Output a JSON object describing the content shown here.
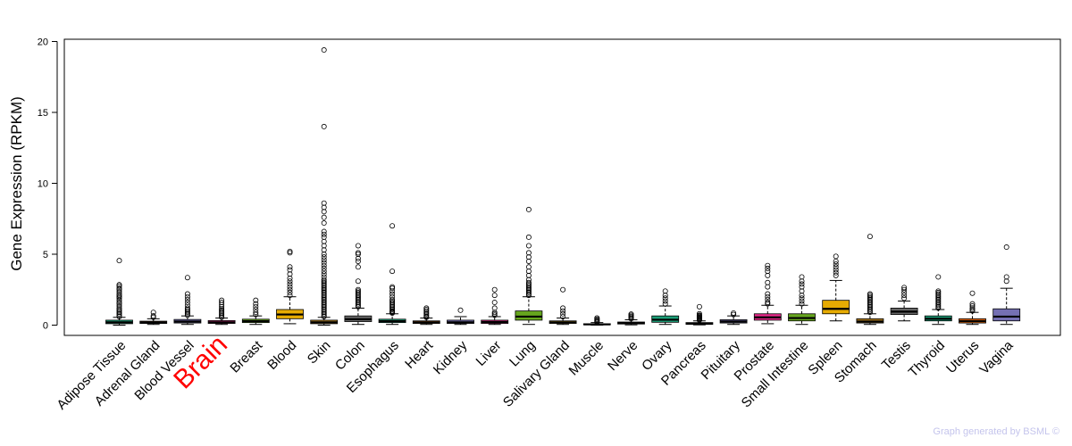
{
  "chart_data": {
    "type": "box",
    "title": "",
    "xlabel": "",
    "ylabel": "Gene Expression (RPKM)",
    "ylim": [
      0,
      20
    ],
    "yticks": [
      0,
      5,
      10,
      15,
      20
    ],
    "highlight_category": "Brain",
    "highlight_color": "#ff0000",
    "credit": "Graph generated by BSML ©",
    "credit_color": "#c4c4ec",
    "categories": [
      "Adipose Tissue",
      "Adrenal Gland",
      "Blood Vessel",
      "Brain",
      "Breast",
      "Blood",
      "Skin",
      "Colon",
      "Esophagus",
      "Heart",
      "Kidney",
      "Liver",
      "Lung",
      "Salivary Gland",
      "Muscle",
      "Nerve",
      "Ovary",
      "Pancreas",
      "Pituitary",
      "Prostate",
      "Small Intestine",
      "Spleen",
      "Stomach",
      "Testis",
      "Thyroid",
      "Uterus",
      "Vagina"
    ],
    "boxes": [
      {
        "color": "#1b9e77",
        "min": 0.0,
        "q1": 0.1,
        "median": 0.2,
        "q3": 0.35,
        "max": 0.55,
        "outliers": [
          0.6,
          0.7,
          0.8,
          0.9,
          1.0,
          1.1,
          1.2,
          1.35,
          1.5,
          1.6,
          1.75,
          1.9,
          2.0,
          2.1,
          2.2,
          2.35,
          2.5,
          2.6,
          2.75,
          2.85,
          4.55
        ]
      },
      {
        "color": "#d95f02",
        "min": 0.05,
        "q1": 0.12,
        "median": 0.18,
        "q3": 0.28,
        "max": 0.45,
        "outliers": [
          0.55,
          0.65,
          0.9
        ]
      },
      {
        "color": "#7570b3",
        "min": 0.05,
        "q1": 0.15,
        "median": 0.25,
        "q3": 0.4,
        "max": 0.65,
        "outliers": [
          0.7,
          0.8,
          0.9,
          1.0,
          1.1,
          1.2,
          1.4,
          1.6,
          1.8,
          2.0,
          2.2,
          3.35
        ]
      },
      {
        "color": "#e7298a",
        "min": 0.05,
        "q1": 0.12,
        "median": 0.2,
        "q3": 0.32,
        "max": 0.5,
        "outliers": [
          0.55,
          0.65,
          0.75,
          0.85,
          0.95,
          1.05,
          1.15,
          1.3,
          1.45,
          1.6,
          1.75
        ]
      },
      {
        "color": "#66a61e",
        "min": 0.05,
        "q1": 0.18,
        "median": 0.28,
        "q3": 0.42,
        "max": 0.65,
        "outliers": [
          0.75,
          0.9,
          1.1,
          1.3,
          1.5,
          1.75
        ]
      },
      {
        "color": "#e6ab02",
        "min": 0.1,
        "q1": 0.45,
        "median": 0.75,
        "q3": 1.1,
        "max": 2.0,
        "outliers": [
          2.1,
          2.3,
          2.5,
          2.7,
          2.9,
          3.1,
          3.3,
          3.6,
          3.9,
          4.1,
          5.1,
          5.2
        ]
      },
      {
        "color": "#a6761d",
        "min": 0.0,
        "q1": 0.1,
        "median": 0.2,
        "q3": 0.35,
        "max": 0.55,
        "outliers": [
          0.6,
          0.7,
          0.8,
          0.9,
          1.0,
          1.1,
          1.2,
          1.3,
          1.4,
          1.5,
          1.6,
          1.7,
          1.8,
          1.9,
          2.0,
          2.1,
          2.2,
          2.3,
          2.4,
          2.5,
          2.6,
          2.7,
          2.8,
          2.9,
          3.0,
          3.1,
          3.2,
          3.4,
          3.6,
          3.8,
          4.0,
          4.2,
          4.4,
          4.6,
          4.8,
          5.0,
          5.3,
          5.6,
          5.9,
          6.2,
          6.4,
          6.6,
          7.2,
          7.6,
          8.0,
          8.3,
          8.6,
          14.0,
          19.4
        ]
      },
      {
        "color": "#666666",
        "min": 0.05,
        "q1": 0.25,
        "median": 0.42,
        "q3": 0.65,
        "max": 1.2,
        "outliers": [
          1.3,
          1.4,
          1.5,
          1.6,
          1.7,
          1.8,
          1.9,
          2.0,
          2.1,
          2.2,
          2.3,
          2.4,
          2.5,
          3.1,
          4.1,
          4.5,
          4.7,
          5.0,
          5.1,
          5.6
        ]
      },
      {
        "color": "#1b9e77",
        "min": 0.05,
        "q1": 0.18,
        "median": 0.28,
        "q3": 0.42,
        "max": 0.8,
        "outliers": [
          0.85,
          0.9,
          0.95,
          1.0,
          1.1,
          1.2,
          1.3,
          1.4,
          1.5,
          1.6,
          1.7,
          1.8,
          2.0,
          2.2,
          2.4,
          2.6,
          2.7,
          3.8,
          7.0
        ]
      },
      {
        "color": "#d95f02",
        "min": 0.05,
        "q1": 0.12,
        "median": 0.2,
        "q3": 0.3,
        "max": 0.5,
        "outliers": [
          0.55,
          0.6,
          0.7,
          0.8,
          0.9,
          1.0,
          1.1,
          1.2
        ]
      },
      {
        "color": "#7570b3",
        "min": 0.05,
        "q1": 0.12,
        "median": 0.2,
        "q3": 0.35,
        "max": 0.6,
        "outliers": [
          1.05
        ]
      },
      {
        "color": "#e7298a",
        "min": 0.05,
        "q1": 0.12,
        "median": 0.22,
        "q3": 0.35,
        "max": 0.6,
        "outliers": [
          0.7,
          0.8,
          0.9,
          1.2,
          1.6,
          2.1,
          2.5
        ]
      },
      {
        "color": "#66a61e",
        "min": 0.05,
        "q1": 0.35,
        "median": 0.6,
        "q3": 1.0,
        "max": 2.0,
        "outliers": [
          2.1,
          2.2,
          2.3,
          2.4,
          2.5,
          2.6,
          2.7,
          2.8,
          2.9,
          3.0,
          3.2,
          3.5,
          3.8,
          4.1,
          4.5,
          4.8,
          5.1,
          5.6,
          6.2,
          8.15
        ]
      },
      {
        "color": "#e6ab02",
        "min": 0.05,
        "q1": 0.12,
        "median": 0.2,
        "q3": 0.3,
        "max": 0.5,
        "outliers": [
          0.6,
          0.8,
          1.0,
          1.2,
          2.5
        ]
      },
      {
        "color": "#a6761d",
        "min": 0.0,
        "q1": 0.03,
        "median": 0.05,
        "q3": 0.1,
        "max": 0.18,
        "outliers": [
          0.22,
          0.28,
          0.35,
          0.42,
          0.5
        ]
      },
      {
        "color": "#666666",
        "min": 0.02,
        "q1": 0.08,
        "median": 0.14,
        "q3": 0.22,
        "max": 0.38,
        "outliers": [
          0.45,
          0.55,
          0.62,
          0.7,
          0.78
        ]
      },
      {
        "color": "#1b9e77",
        "min": 0.05,
        "q1": 0.2,
        "median": 0.38,
        "q3": 0.65,
        "max": 1.35,
        "outliers": [
          1.5,
          1.7,
          1.9,
          2.1,
          2.4
        ]
      },
      {
        "color": "#d95f02",
        "min": 0.02,
        "q1": 0.06,
        "median": 0.1,
        "q3": 0.18,
        "max": 0.3,
        "outliers": [
          0.35,
          0.4,
          0.45,
          0.5,
          0.55,
          0.6,
          0.65,
          0.7,
          0.8,
          1.3
        ]
      },
      {
        "color": "#7570b3",
        "min": 0.05,
        "q1": 0.15,
        "median": 0.25,
        "q3": 0.38,
        "max": 0.65,
        "outliers": [
          0.75,
          0.85
        ]
      },
      {
        "color": "#e7298a",
        "min": 0.1,
        "q1": 0.35,
        "median": 0.55,
        "q3": 0.8,
        "max": 1.4,
        "outliers": [
          1.5,
          1.6,
          1.8,
          2.0,
          2.2,
          2.7,
          3.0,
          3.5,
          3.8,
          4.0,
          4.2
        ]
      },
      {
        "color": "#66a61e",
        "min": 0.05,
        "q1": 0.3,
        "median": 0.5,
        "q3": 0.8,
        "max": 1.4,
        "outliers": [
          1.5,
          1.7,
          1.9,
          2.1,
          2.4,
          2.7,
          2.9,
          3.1,
          3.4
        ]
      },
      {
        "color": "#e6ab02",
        "min": 0.3,
        "q1": 0.8,
        "median": 1.15,
        "q3": 1.75,
        "max": 3.15,
        "outliers": [
          3.5,
          3.7,
          3.9,
          4.1,
          4.3,
          4.5,
          4.85
        ]
      },
      {
        "color": "#a6761d",
        "min": 0.05,
        "q1": 0.15,
        "median": 0.25,
        "q3": 0.45,
        "max": 0.8,
        "outliers": [
          0.9,
          1.0,
          1.1,
          1.2,
          1.3,
          1.4,
          1.5,
          1.6,
          1.7,
          1.8,
          1.9,
          2.0,
          2.1,
          2.2,
          6.25
        ]
      },
      {
        "color": "#666666",
        "min": 0.3,
        "q1": 0.75,
        "median": 0.95,
        "q3": 1.2,
        "max": 1.7,
        "outliers": [
          1.9,
          2.1,
          2.3,
          2.5,
          2.65
        ]
      },
      {
        "color": "#1b9e77",
        "min": 0.05,
        "q1": 0.3,
        "median": 0.45,
        "q3": 0.65,
        "max": 1.1,
        "outliers": [
          1.2,
          1.3,
          1.4,
          1.5,
          1.6,
          1.7,
          1.8,
          1.9,
          2.0,
          2.1,
          2.2,
          2.3,
          2.4,
          3.4
        ]
      },
      {
        "color": "#d95f02",
        "min": 0.05,
        "q1": 0.15,
        "median": 0.28,
        "q3": 0.45,
        "max": 0.9,
        "outliers": [
          1.0,
          1.1,
          1.2,
          1.35,
          1.5,
          2.25
        ]
      },
      {
        "color": "#7570b3",
        "min": 0.05,
        "q1": 0.3,
        "median": 0.6,
        "q3": 1.15,
        "max": 2.6,
        "outliers": [
          3.1,
          3.4,
          5.5
        ]
      }
    ]
  }
}
